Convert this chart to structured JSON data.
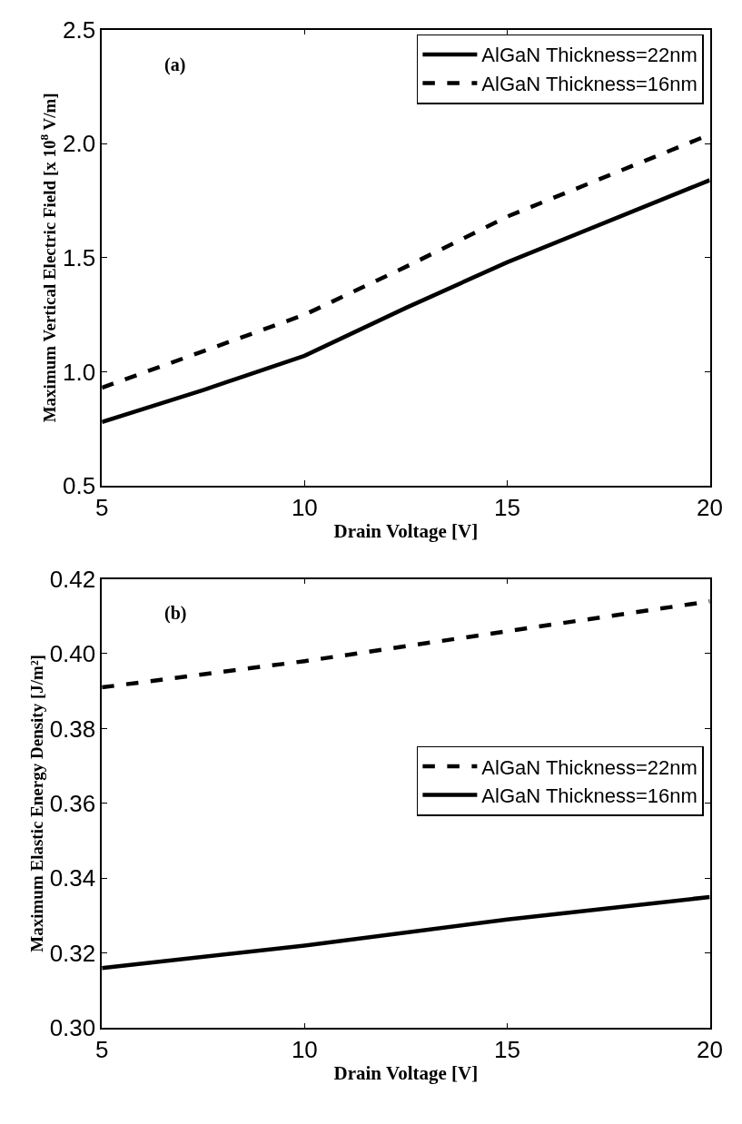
{
  "chart_data": [
    {
      "type": "line",
      "xlabel": "Drain Voltage [V]",
      "ylabel": "Maximum Vertical Electric Field [x 10$^{8}$ V/m]",
      "xlim": [
        5,
        20
      ],
      "xticks": [
        5,
        10,
        15,
        20
      ],
      "ylim": [
        0.5,
        2.5
      ],
      "yticks": [
        {
          "value": 0.5,
          "label": "0.5"
        },
        {
          "value": 1,
          "label": "1.0"
        },
        {
          "value": 1.5,
          "label": "1.5"
        },
        {
          "value": 2,
          "label": "2.0"
        },
        {
          "value": 2.5,
          "label": "2.5"
        }
      ],
      "legend": "top right",
      "annotations": [
        "(a)"
      ],
      "x": [
        5,
        7.5,
        10,
        12.5,
        15,
        17.5,
        20
      ],
      "series": [
        {
          "name": "AlGaN Thickness=22nm",
          "color": "#000000",
          "line_style": "solid",
          "values": [
            0.78,
            0.92,
            1.07,
            1.28,
            1.48,
            1.66,
            1.84
          ]
        },
        {
          "name": "AlGaN Thickness=16nm",
          "color": "#000000",
          "line_style": "dashed",
          "values": [
            0.93,
            1.09,
            1.25,
            1.46,
            1.68,
            1.86,
            2.04
          ]
        }
      ]
    },
    {
      "type": "line",
      "xlabel": "Drain Voltage [V]",
      "ylabel": "Maximum Elastic Energy Density [J/m²]",
      "xlim": [
        5,
        20
      ],
      "xticks": [
        5,
        10,
        15,
        20
      ],
      "ylim": [
        0.3,
        0.42
      ],
      "yticks": [
        {
          "value": 0.3,
          "label": "0.30"
        },
        0.32,
        0.34,
        0.36,
        0.38,
        {
          "value": 0.4,
          "label": "0.40"
        },
        0.42
      ],
      "legend": "right",
      "annotations": [
        "(b)"
      ],
      "x": [
        5,
        10,
        15,
        20
      ],
      "series": [
        {
          "name": "AlGaN Thickness=22nm",
          "color": "#000000",
          "line_style": "dashed",
          "values": [
            0.391,
            0.398,
            0.406,
            0.414
          ]
        },
        {
          "name": "AlGaN Thickness=16nm",
          "color": "#000000",
          "line_style": "solid",
          "values": [
            0.316,
            0.322,
            0.329,
            0.335
          ]
        }
      ]
    }
  ]
}
